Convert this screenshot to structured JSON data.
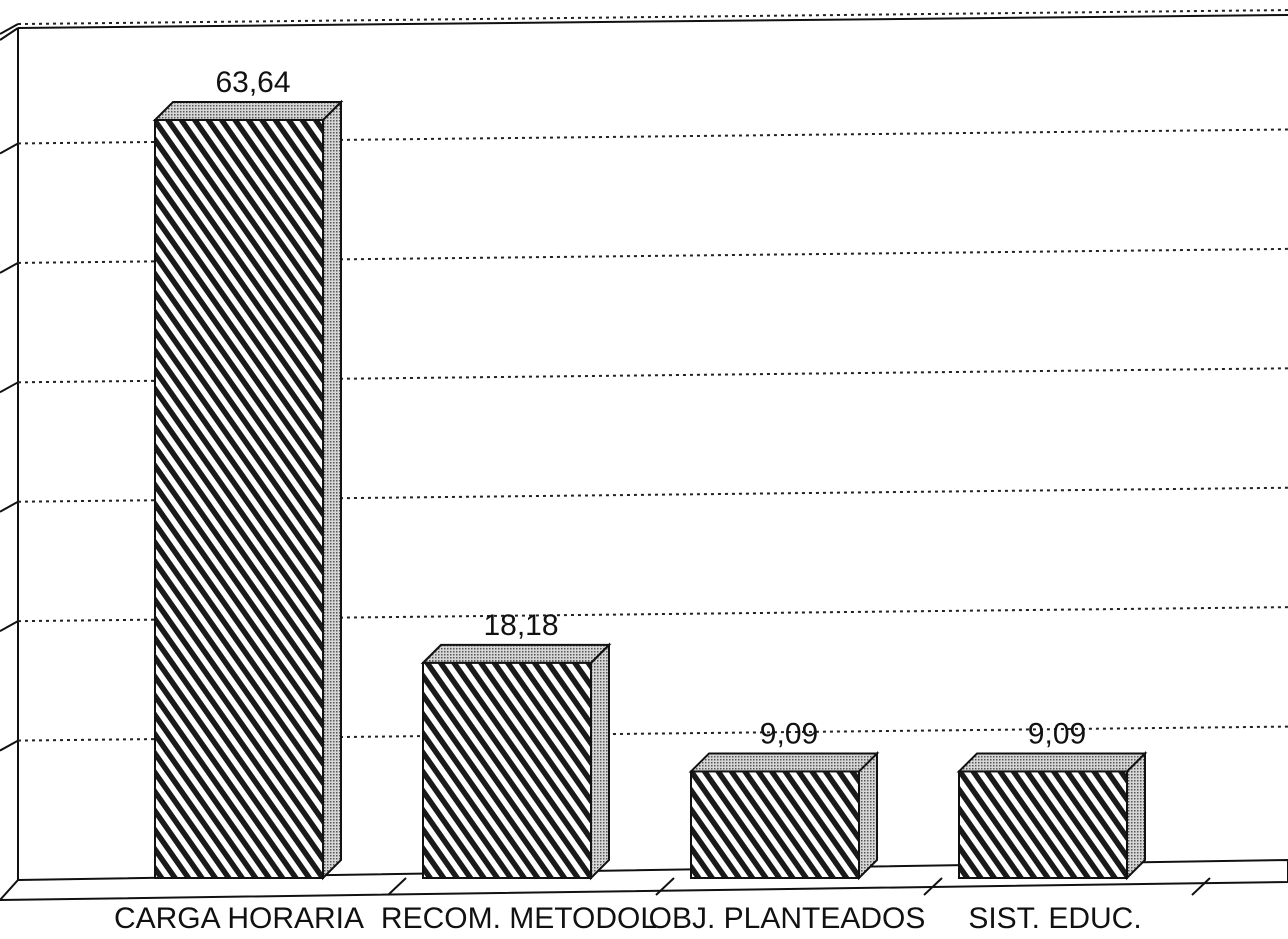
{
  "chart_data": {
    "type": "bar",
    "style": "3d-hatched",
    "categories": [
      "CARGA HORARIA",
      "RECOM. METODOL",
      "OBJ. PLANTEADOS",
      "SIST. EDUC."
    ],
    "values": [
      63.64,
      18.18,
      9.09,
      9.09
    ],
    "value_labels": [
      "63,64",
      "18,18",
      "9,09",
      "9,09"
    ],
    "title": "",
    "xlabel": "",
    "ylabel": "",
    "ylim": [
      0,
      70
    ],
    "grid": true,
    "legend": "none",
    "colors": {
      "bar_front_hatch": "#1a1a1a",
      "bar_side": "#9a9a9a",
      "bar_top": "#b5b5b5",
      "background": "#ffffff"
    }
  }
}
